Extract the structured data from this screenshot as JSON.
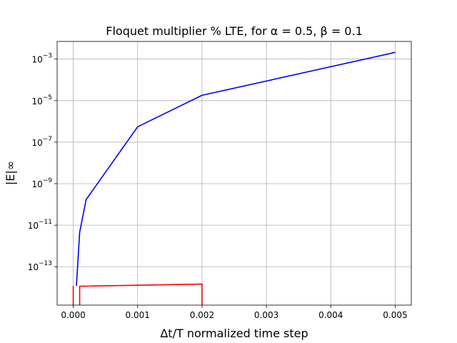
{
  "chart_data": {
    "type": "line",
    "title": "Floquet multiplier % LTE, for α = 0.5, β = 0.1",
    "xlabel": "Δt/T normalized time step",
    "ylabel": "|E|∞",
    "yscale": "log",
    "grid": true,
    "xlim": [
      -0.00025,
      0.00525
    ],
    "ylim_exp": [
      -14.85,
      -2.15
    ],
    "x_ticks": [
      {
        "value": 0.0,
        "label": "0.000"
      },
      {
        "value": 0.001,
        "label": "0.001"
      },
      {
        "value": 0.002,
        "label": "0.002"
      },
      {
        "value": 0.003,
        "label": "0.003"
      },
      {
        "value": 0.004,
        "label": "0.004"
      },
      {
        "value": 0.005,
        "label": "0.005"
      }
    ],
    "y_ticks": [
      {
        "exp": -13,
        "base": "10",
        "sup": "−13"
      },
      {
        "exp": -11,
        "base": "10",
        "sup": "−11"
      },
      {
        "exp": -9,
        "base": "10",
        "sup": "−9"
      },
      {
        "exp": -7,
        "base": "10",
        "sup": "−7"
      },
      {
        "exp": -5,
        "base": "10",
        "sup": "−5"
      },
      {
        "exp": -3,
        "base": "10",
        "sup": "−3"
      }
    ],
    "series": [
      {
        "color": "#0000ff",
        "x": [
          5e-05,
          0.0001,
          0.0002,
          0.001,
          0.002,
          0.005
        ],
        "y": [
          1.2e-14,
          4.5e-12,
          1.7e-10,
          5.5e-07,
          1.8e-05,
          0.0021
        ]
      },
      {
        "color": "#ff0000",
        "x": [
          0.0,
          0.0,
          0.0001,
          0.0001,
          0.002,
          0.002
        ],
        "y": [
          1.2e-14,
          1e-15,
          1e-15,
          1.15e-14,
          1.45e-14,
          1e-15
        ]
      }
    ]
  }
}
